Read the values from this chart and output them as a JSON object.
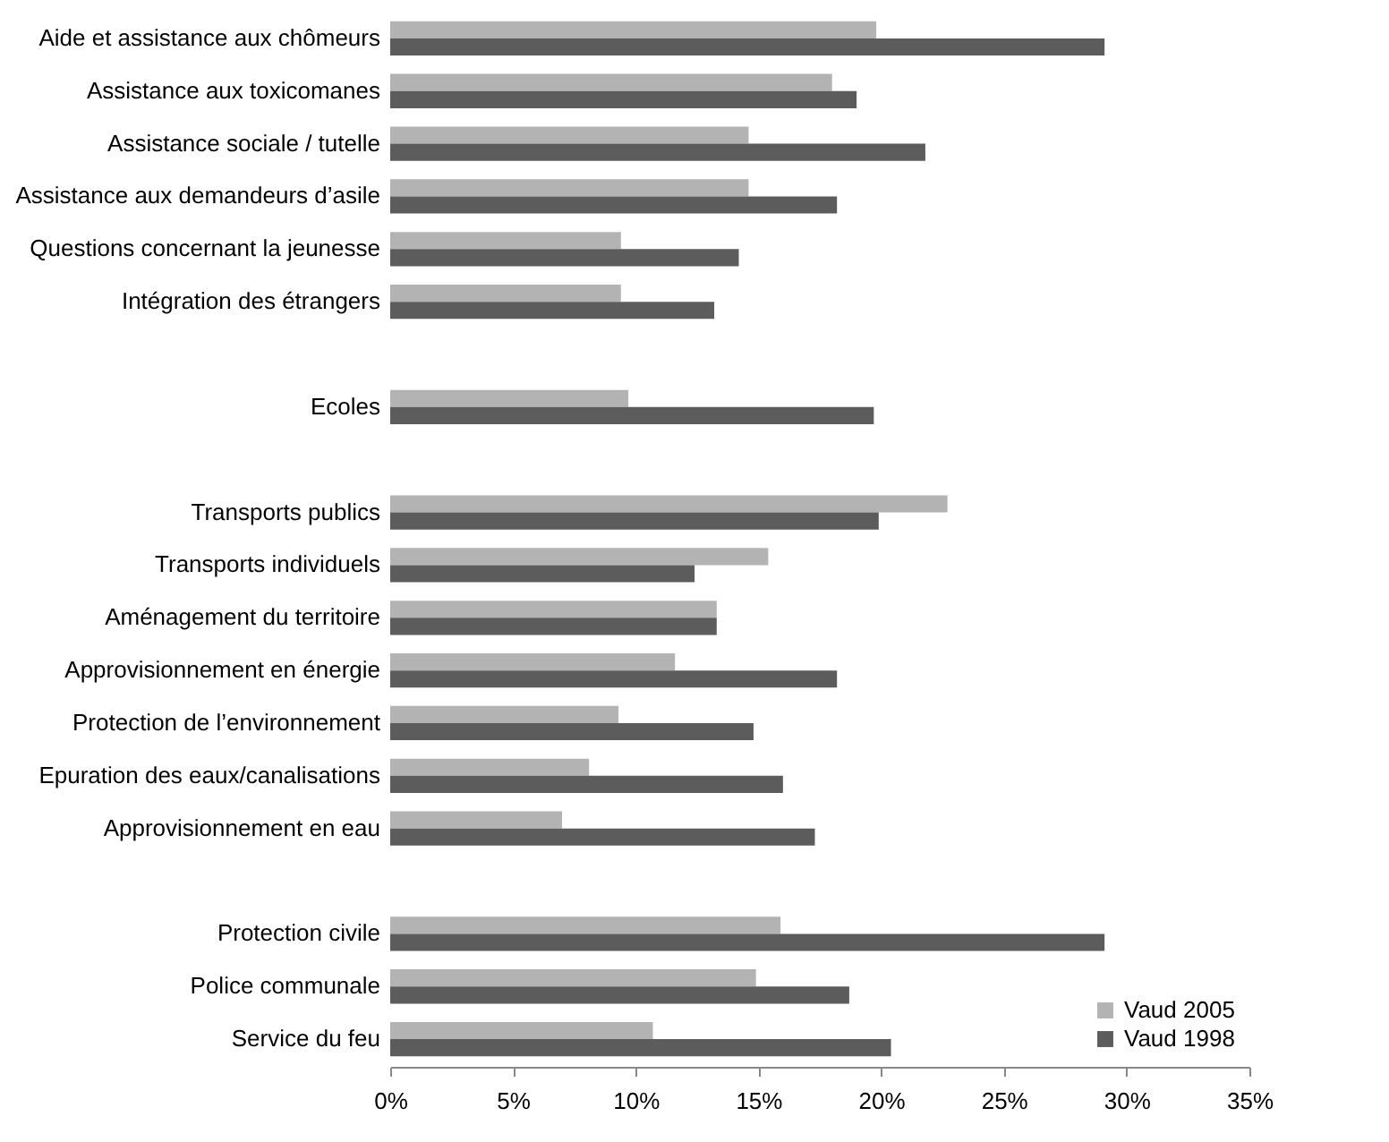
{
  "chart_data": {
    "type": "bar",
    "orientation": "horizontal",
    "categories": [
      "Aide et assistance aux chômeurs",
      "Assistance aux toxicomanes",
      "Assistance sociale / tutelle",
      "Assistance aux demandeurs d’asile",
      "Questions concernant la jeunesse",
      "Intégration des étrangers",
      null,
      "Ecoles",
      null,
      "Transports publics",
      "Transports individuels",
      "Aménagement du territoire",
      "Approvisionnement en énergie",
      "Protection de l’environnement",
      "Epuration des eaux/canalisations",
      "Approvisionnement en eau",
      null,
      "Protection civile",
      "Police communale",
      "Service du feu"
    ],
    "series": [
      {
        "name": "Vaud 2005",
        "color": "#b3b3b3",
        "values": [
          19.8,
          18.0,
          14.6,
          14.6,
          9.4,
          9.4,
          null,
          9.7,
          null,
          22.7,
          15.4,
          13.3,
          11.6,
          9.3,
          8.1,
          7.0,
          null,
          15.9,
          14.9,
          10.7
        ]
      },
      {
        "name": "Vaud 1998",
        "color": "#5c5c5c",
        "values": [
          29.1,
          19.0,
          21.8,
          18.2,
          14.2,
          13.2,
          null,
          19.7,
          null,
          19.9,
          12.4,
          13.3,
          18.2,
          14.8,
          16.0,
          17.3,
          null,
          29.1,
          18.7,
          20.4
        ]
      }
    ],
    "xlim": [
      0,
      35
    ],
    "xticks": [
      {
        "value": 0,
        "label": "0%"
      },
      {
        "value": 5,
        "label": "5%"
      },
      {
        "value": 10,
        "label": "10%"
      },
      {
        "value": 15,
        "label": "15%"
      },
      {
        "value": 20,
        "label": "20%"
      },
      {
        "value": 25,
        "label": "25%"
      },
      {
        "value": 30,
        "label": "30%"
      },
      {
        "value": 35,
        "label": "35%"
      }
    ],
    "legend": "bottom right",
    "grid": false
  }
}
